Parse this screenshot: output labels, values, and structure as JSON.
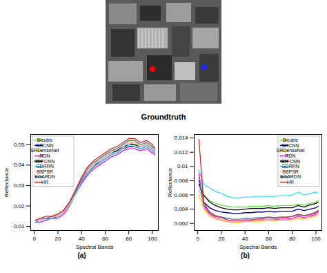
{
  "image_caption": "Groundtruth",
  "chart_data": [
    {
      "type": "line",
      "title": "(a)",
      "x_label": "Spectral Bands",
      "y_label": "Reflectance",
      "x": [
        1,
        5,
        10,
        15,
        20,
        25,
        30,
        35,
        40,
        45,
        50,
        55,
        60,
        65,
        70,
        75,
        80,
        85,
        90,
        95,
        100,
        102
      ],
      "xlim": [
        -3,
        105
      ],
      "xticks": [
        0,
        20,
        40,
        60,
        80,
        100
      ],
      "ylim": [
        0.008,
        0.055
      ],
      "yticks": [
        0.01,
        0.02,
        0.03,
        0.04,
        0.05
      ],
      "legend": "upper left",
      "series": [
        {
          "name": "Bicubic",
          "color": "#5ee83a",
          "values": [
            0.012,
            0.013,
            0.014,
            0.014,
            0.015,
            0.017,
            0.021,
            0.027,
            0.033,
            0.037,
            0.04,
            0.042,
            0.044,
            0.046,
            0.047,
            0.049,
            0.051,
            0.05,
            0.049,
            0.05,
            0.048,
            0.047
          ]
        },
        {
          "name": "SRCNN",
          "color": "#00008b",
          "values": [
            0.012,
            0.013,
            0.014,
            0.014,
            0.015,
            0.017,
            0.021,
            0.026,
            0.032,
            0.036,
            0.039,
            0.041,
            0.043,
            0.045,
            0.046,
            0.048,
            0.049,
            0.049,
            0.048,
            0.049,
            0.047,
            0.046
          ]
        },
        {
          "name": "SRDenseNet",
          "color": "#f5d800",
          "values": [
            0.013,
            0.013,
            0.014,
            0.015,
            0.015,
            0.017,
            0.021,
            0.027,
            0.033,
            0.037,
            0.04,
            0.043,
            0.045,
            0.047,
            0.048,
            0.05,
            0.052,
            0.051,
            0.05,
            0.051,
            0.049,
            0.048
          ]
        },
        {
          "name": "RDN",
          "color": "#ff00ff",
          "values": [
            0.012,
            0.012,
            0.013,
            0.014,
            0.014,
            0.016,
            0.02,
            0.026,
            0.031,
            0.035,
            0.038,
            0.04,
            0.042,
            0.044,
            0.045,
            0.047,
            0.048,
            0.048,
            0.047,
            0.048,
            0.046,
            0.045
          ]
        },
        {
          "name": "3DFCNN",
          "color": "#000000",
          "values": [
            0.013,
            0.013,
            0.014,
            0.014,
            0.015,
            0.017,
            0.021,
            0.027,
            0.032,
            0.036,
            0.039,
            0.042,
            0.044,
            0.046,
            0.047,
            0.049,
            0.05,
            0.05,
            0.049,
            0.05,
            0.048,
            0.047
          ]
        },
        {
          "name": "GDRRN",
          "color": "#33ddff",
          "values": [
            0.012,
            0.013,
            0.014,
            0.014,
            0.015,
            0.017,
            0.02,
            0.026,
            0.032,
            0.036,
            0.039,
            0.041,
            0.043,
            0.045,
            0.046,
            0.048,
            0.05,
            0.049,
            0.048,
            0.049,
            0.047,
            0.046
          ]
        },
        {
          "name": "SSPSR",
          "color": "#ffb6c8",
          "values": [
            0.013,
            0.013,
            0.014,
            0.015,
            0.015,
            0.017,
            0.021,
            0.027,
            0.033,
            0.037,
            0.04,
            0.042,
            0.044,
            0.046,
            0.048,
            0.049,
            0.051,
            0.051,
            0.049,
            0.05,
            0.048,
            0.047
          ]
        },
        {
          "name": "SGARDN",
          "color": "#4a7fb5",
          "values": [
            0.013,
            0.014,
            0.014,
            0.015,
            0.016,
            0.018,
            0.022,
            0.027,
            0.033,
            0.038,
            0.041,
            0.043,
            0.045,
            0.047,
            0.048,
            0.05,
            0.052,
            0.052,
            0.05,
            0.051,
            0.049,
            0.048
          ]
        },
        {
          "name": "HR",
          "color": "#e8201a",
          "values": [
            0.013,
            0.014,
            0.015,
            0.015,
            0.016,
            0.018,
            0.022,
            0.028,
            0.034,
            0.039,
            0.042,
            0.044,
            0.046,
            0.048,
            0.049,
            0.051,
            0.053,
            0.053,
            0.051,
            0.052,
            0.05,
            0.048
          ]
        }
      ]
    },
    {
      "type": "line",
      "title": "(b)",
      "x_label": "Spectral Bands",
      "y_label": "Reflectance",
      "x": [
        1,
        5,
        10,
        15,
        20,
        25,
        30,
        35,
        40,
        45,
        50,
        55,
        60,
        65,
        70,
        75,
        80,
        85,
        90,
        95,
        100,
        102
      ],
      "xlim": [
        -3,
        105
      ],
      "xticks": [
        0,
        20,
        40,
        60,
        80,
        100
      ],
      "ylim": [
        0.001,
        0.0145
      ],
      "yticks": [
        0.002,
        0.004,
        0.006,
        0.008,
        0.01,
        0.012,
        0.014
      ],
      "legend": "upper right",
      "series": [
        {
          "name": "Bicubic",
          "color": "#5ee83a",
          "values": [
            0.0065,
            0.0058,
            0.0052,
            0.0048,
            0.0046,
            0.0044,
            0.0043,
            0.0043,
            0.0043,
            0.0044,
            0.0044,
            0.0044,
            0.0045,
            0.0044,
            0.0045,
            0.0045,
            0.0045,
            0.0047,
            0.0046,
            0.0048,
            0.005,
            0.0052
          ]
        },
        {
          "name": "SRCNN",
          "color": "#00008b",
          "values": [
            0.008,
            0.005,
            0.0042,
            0.0038,
            0.0036,
            0.0035,
            0.0034,
            0.0034,
            0.0035,
            0.0035,
            0.0036,
            0.0036,
            0.0037,
            0.0036,
            0.0037,
            0.0037,
            0.0037,
            0.004,
            0.0038,
            0.004,
            0.0042,
            0.0044
          ]
        },
        {
          "name": "SRDenseNet",
          "color": "#f5d800",
          "values": [
            0.006,
            0.004,
            0.003,
            0.0026,
            0.0024,
            0.0022,
            0.0021,
            0.0021,
            0.0022,
            0.0022,
            0.0023,
            0.0023,
            0.0024,
            0.0023,
            0.0024,
            0.0024,
            0.0025,
            0.0027,
            0.0026,
            0.0028,
            0.003,
            0.0032
          ]
        },
        {
          "name": "RDN",
          "color": "#ff00ff",
          "values": [
            0.009,
            0.0045,
            0.0033,
            0.0028,
            0.0025,
            0.0023,
            0.0022,
            0.0022,
            0.0023,
            0.0024,
            0.0024,
            0.0025,
            0.0025,
            0.0025,
            0.0026,
            0.0026,
            0.0027,
            0.003,
            0.0028,
            0.003,
            0.0033,
            0.0036
          ]
        },
        {
          "name": "3DFCNN",
          "color": "#000000",
          "values": [
            0.0075,
            0.006,
            0.005,
            0.0045,
            0.0042,
            0.004,
            0.0039,
            0.0039,
            0.004,
            0.0041,
            0.0041,
            0.0041,
            0.0042,
            0.0041,
            0.0042,
            0.0042,
            0.0042,
            0.0045,
            0.0043,
            0.0046,
            0.0048,
            0.005
          ]
        },
        {
          "name": "GDRRN",
          "color": "#33ddff",
          "values": [
            0.0095,
            0.0075,
            0.007,
            0.0065,
            0.0062,
            0.0058,
            0.0056,
            0.0056,
            0.0057,
            0.0057,
            0.0058,
            0.0058,
            0.0058,
            0.0058,
            0.0059,
            0.0059,
            0.006,
            0.0064,
            0.006,
            0.0062,
            0.0064,
            0.0062
          ]
        },
        {
          "name": "SSPSR",
          "color": "#ffb6c8",
          "values": [
            0.007,
            0.0042,
            0.0032,
            0.0027,
            0.0025,
            0.0023,
            0.0022,
            0.0022,
            0.0023,
            0.0023,
            0.0024,
            0.0024,
            0.0025,
            0.0024,
            0.0025,
            0.0025,
            0.0026,
            0.0028,
            0.0027,
            0.0029,
            0.0031,
            0.0033
          ]
        },
        {
          "name": "SGARDN",
          "color": "#4a7fb5",
          "values": [
            0.0085,
            0.0046,
            0.0036,
            0.0031,
            0.0029,
            0.0027,
            0.0026,
            0.0026,
            0.0027,
            0.0027,
            0.0028,
            0.0028,
            0.0029,
            0.0028,
            0.0029,
            0.0029,
            0.003,
            0.0033,
            0.0031,
            0.0033,
            0.0036,
            0.0038
          ]
        },
        {
          "name": "HR",
          "color": "#e8201a",
          "values": [
            0.0138,
            0.005,
            0.0035,
            0.003,
            0.0028,
            0.0025,
            0.0024,
            0.0024,
            0.0025,
            0.0025,
            0.0026,
            0.0027,
            0.0028,
            0.0027,
            0.0028,
            0.0028,
            0.003,
            0.0032,
            0.0031,
            0.0032,
            0.0035,
            0.0038
          ]
        }
      ]
    }
  ]
}
